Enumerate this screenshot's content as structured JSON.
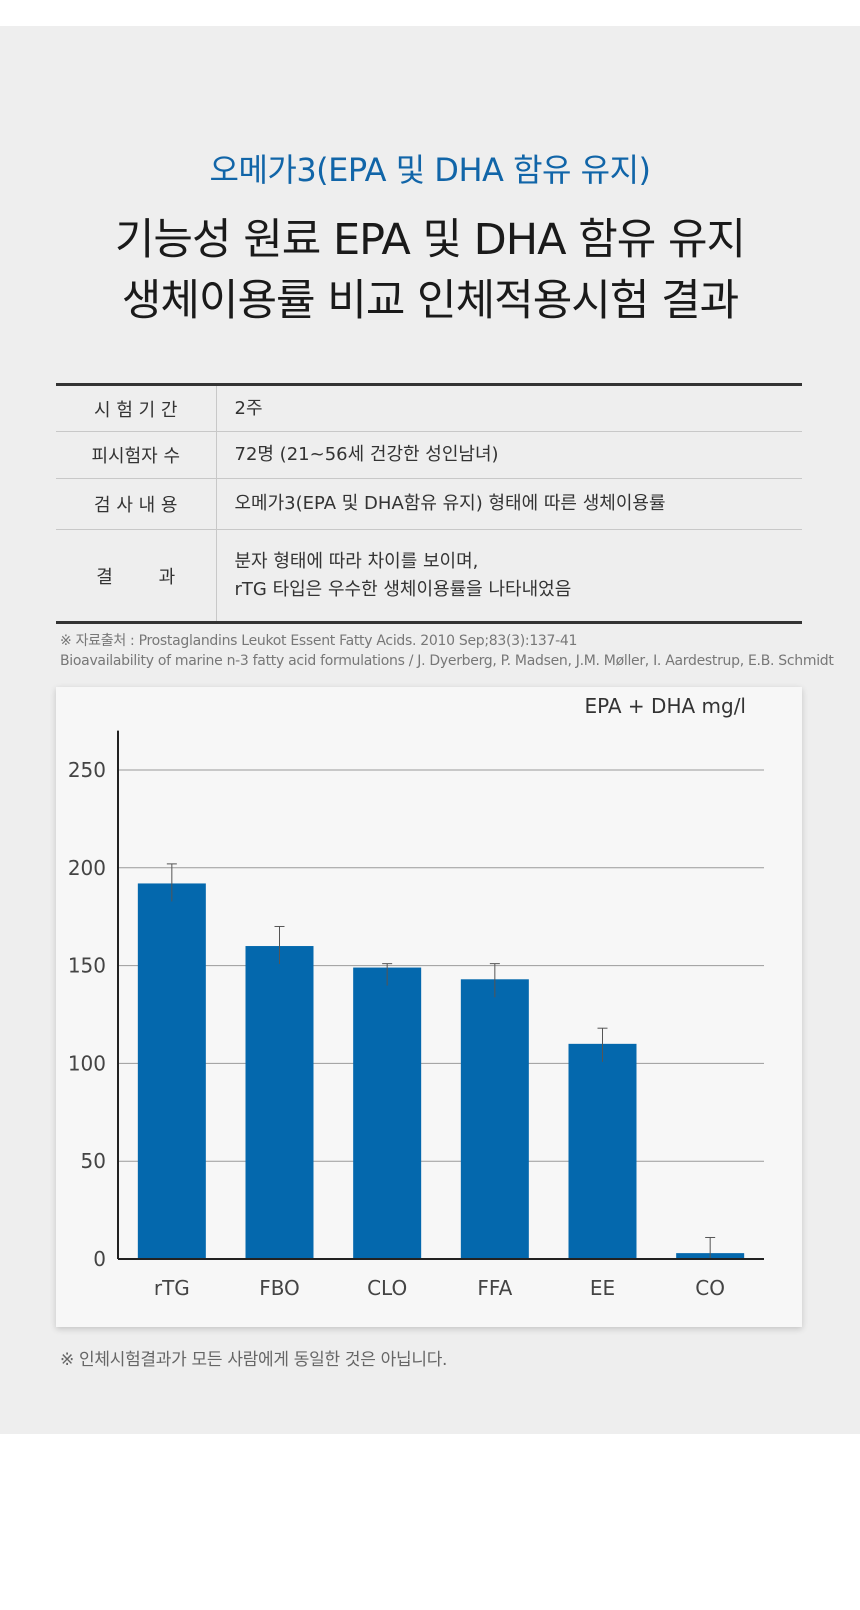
{
  "header": {
    "subtitle": "오메가3(EPA 및 DHA 함유 유지)",
    "title_line1": "기능성 원료 EPA 및 DHA 함유 유지",
    "title_line2": "생체이용률 비교 인체적용시험 결과"
  },
  "info_table": {
    "rows": [
      {
        "label": "시 험 기 간",
        "value": "2주"
      },
      {
        "label": "피시험자 수",
        "value": "72명 (21~56세 건강한 성인남녀)"
      },
      {
        "label": "검 사 내 용",
        "value": "오메가3(EPA 및 DHA함유 유지) 형태에 따른 생체이용률"
      },
      {
        "label": "결        과",
        "value_line1": "분자 형태에 따라 차이를 보이며,",
        "value_line2": "rTG 타입은 우수한 생체이용률을 나타내었음"
      }
    ]
  },
  "source": {
    "line1": "※ 자료출처 : Prostaglandins Leukot Essent Fatty Acids. 2010 Sep;83(3):137-41",
    "line2": "Bioavailability of marine n-3 fatty acid formulations / J. Dyerberg, P. Madsen, J.M. Møller, I. Aardestrup, E.B. Schmidt"
  },
  "chart_data": {
    "type": "bar",
    "categories": [
      "rTG",
      "FBO",
      "CLO",
      "FFA",
      "EE",
      "CO"
    ],
    "values": [
      192,
      160,
      149,
      143,
      110,
      3
    ],
    "error_upper": [
      202,
      170,
      151,
      151,
      118,
      11
    ],
    "unit_label": "EPA + DHA mg/l",
    "yticks": [
      0,
      50,
      100,
      150,
      200,
      250
    ],
    "ylim": [
      0,
      265
    ],
    "grid": true,
    "bar_color": "#0468ad"
  },
  "footnote": "※ 인체시험결과가 모든 사람에게 동일한 것은 아닙니다."
}
